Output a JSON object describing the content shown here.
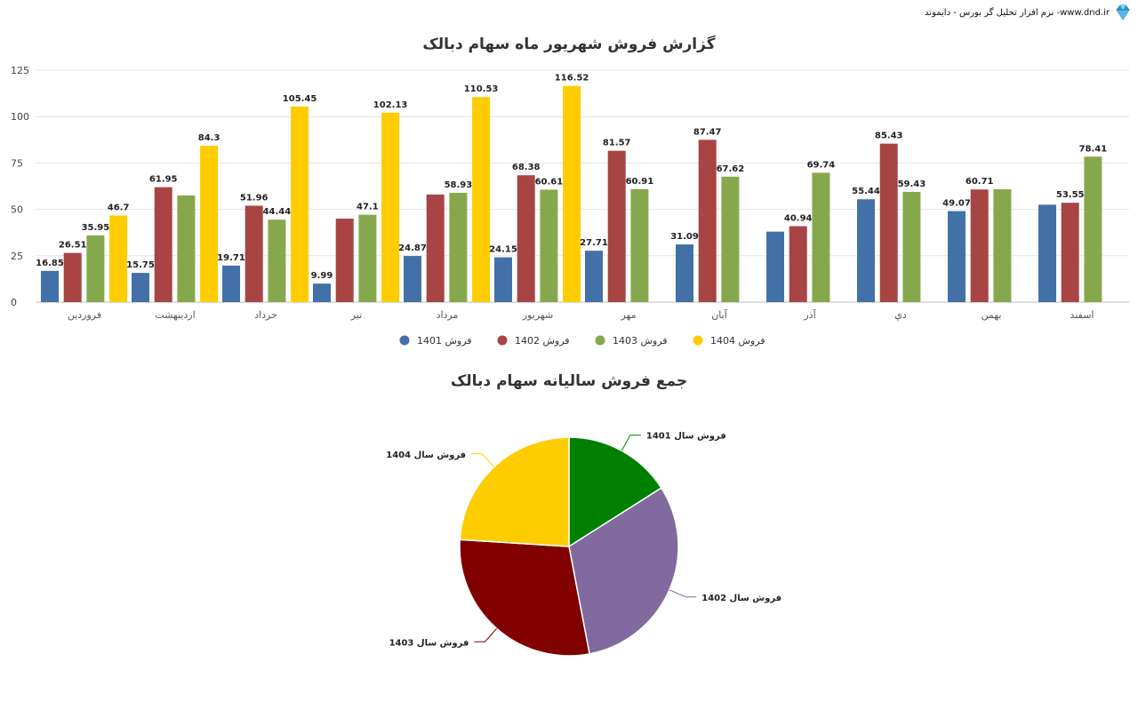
{
  "header": {
    "text": "نرم افزار تحلیل گر بورس - دایموند -www.dnd.ir",
    "icon": "diamond-logo-icon"
  },
  "chart_data": [
    {
      "type": "bar",
      "title": "گزارش فروش شهریور ماه سهام دبالک",
      "categories": [
        "فروردین",
        "اردیبهشت",
        "خرداد",
        "تیر",
        "مرداد",
        "شهریور",
        "مهر",
        "آبان",
        "آذر",
        "دي",
        "بهمن",
        "اسفند"
      ],
      "series": [
        {
          "name": "فروش 1401",
          "color": "#4470A8",
          "values": [
            16.85,
            15.75,
            19.71,
            9.99,
            24.87,
            24.15,
            27.71,
            31.09,
            38,
            55.44,
            49.07,
            52.5
          ],
          "labels": [
            "16.85",
            "15.75",
            "19.71",
            "9.99",
            "24.87",
            "24.15",
            "27.71",
            "31.09",
            "",
            "55.44",
            "49.07",
            ""
          ]
        },
        {
          "name": "فروش 1402",
          "color": "#A84444",
          "values": [
            26.51,
            61.95,
            51.96,
            45,
            58,
            68.38,
            81.57,
            87.47,
            40.94,
            85.43,
            60.71,
            53.55
          ],
          "labels": [
            "26.51",
            "61.95",
            "51.96",
            "",
            "",
            "68.38",
            "81.57",
            "87.47",
            "40.94",
            "85.43",
            "60.71",
            "53.55"
          ]
        },
        {
          "name": "فروش 1403",
          "color": "#86A84C",
          "values": [
            35.95,
            57.5,
            44.44,
            47.1,
            58.93,
            60.61,
            60.91,
            67.62,
            69.74,
            59.43,
            60.8,
            78.41
          ],
          "labels": [
            "35.95",
            "",
            "44.44",
            "47.1",
            "58.93",
            "60.61",
            "60.91",
            "67.62",
            "69.74",
            "59.43",
            "",
            "78.41"
          ]
        },
        {
          "name": "فروش 1404",
          "color": "#FFCC00",
          "values": [
            46.7,
            84.3,
            105.45,
            102.13,
            110.53,
            116.52,
            null,
            null,
            null,
            null,
            null,
            null
          ],
          "labels": [
            "46.7",
            "84.3",
            "105.45",
            "102.13",
            "110.53",
            "116.52",
            "",
            "",
            "",
            "",
            "",
            ""
          ]
        }
      ],
      "ylim": [
        0,
        125
      ],
      "yticks": [
        "0",
        "25",
        "50",
        "75",
        "100",
        "125"
      ],
      "grid": true,
      "legend": "bottom"
    },
    {
      "type": "pie",
      "title": "جمع فروش سالیانه سهام دبالک",
      "slices": [
        {
          "label": "فروش سال 1401",
          "color": "#008000",
          "value": 16
        },
        {
          "label": "فروش سال 1402",
          "color": "#806A9E",
          "value": 31
        },
        {
          "label": "فروش سال 1403",
          "color": "#800000",
          "value": 29
        },
        {
          "label": "فروش سال 1404",
          "color": "#FFCC00",
          "value": 24
        }
      ]
    }
  ]
}
